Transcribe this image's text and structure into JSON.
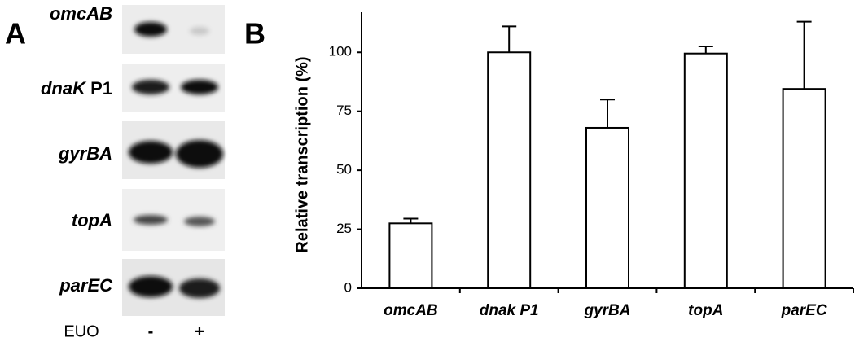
{
  "panel_a": {
    "label": "A",
    "lanes": [
      {
        "gene": "omcAB"
      },
      {
        "gene": "dnaK",
        "suffix": "P1"
      },
      {
        "gene": "gyrBA"
      },
      {
        "gene": "topA"
      },
      {
        "gene": "parEC"
      }
    ],
    "treatment": "EUO",
    "conditions": [
      "-",
      "+"
    ]
  },
  "chart_data": {
    "type": "bar",
    "panel_label": "B",
    "y_label": "Relative transcription (%)",
    "categories": [
      "omcAB",
      "dnak P1",
      "gyrBA",
      "topA",
      "parEC"
    ],
    "values": [
      27.5,
      100,
      68,
      99.5,
      84.5
    ],
    "errors": [
      2,
      11,
      12,
      3,
      28.5
    ],
    "color": "#ffffff",
    "ylim": [
      0,
      117
    ],
    "yticks": [
      0,
      25,
      50,
      75,
      100
    ],
    "grid": false
  }
}
